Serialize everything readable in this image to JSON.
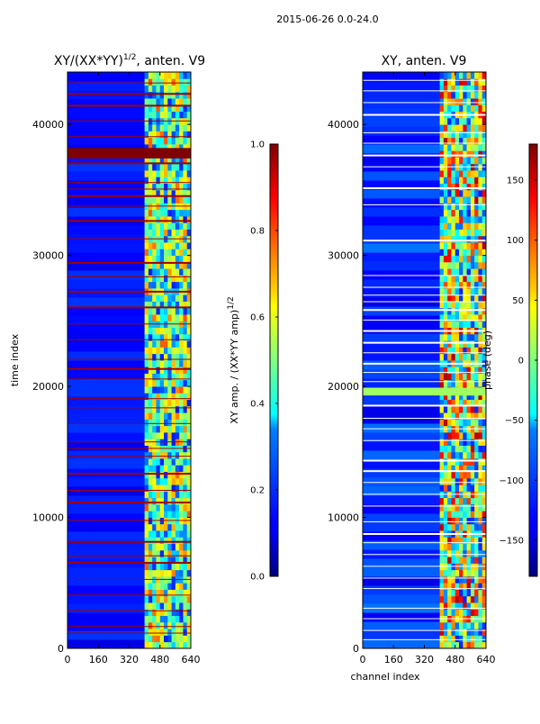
{
  "chart_data": [
    {
      "type": "heatmap",
      "title": "XY/(XX*YY)",
      "title_exponent": "1/2",
      "title_suffix": ", anten. V9",
      "xlabel": "",
      "ylabel": "time index",
      "xlim": [
        0,
        640
      ],
      "ylim": [
        0,
        44000
      ],
      "xticks": [
        0,
        160,
        320,
        480,
        640
      ],
      "yticks": [
        0,
        10000,
        20000,
        30000,
        40000
      ],
      "colormap": "jet",
      "color_range": [
        0.0,
        1.0
      ],
      "active_channel_range": [
        400,
        640
      ],
      "saturated_rows": [
        1200,
        1700,
        2900,
        4100,
        5300,
        6600,
        7100,
        8200,
        9800,
        11200,
        12100,
        13400,
        14700,
        15300,
        15800,
        17200,
        18400,
        19100,
        20600,
        21400,
        22100,
        23600,
        24800,
        26100,
        27300,
        28400,
        29500,
        31300,
        32700,
        33800,
        34600,
        35100,
        35600,
        37100,
        37600,
        38000,
        39100,
        40300,
        41500,
        42400,
        43200
      ]
    },
    {
      "type": "heatmap",
      "title": "XY, anten. V9",
      "xlabel": "channel index",
      "ylabel": "",
      "xlim": [
        0,
        640
      ],
      "ylim": [
        0,
        44000
      ],
      "xticks": [
        0,
        160,
        320,
        480,
        640
      ],
      "yticks": [
        0,
        10000,
        20000,
        30000,
        40000
      ],
      "colormap": "jet",
      "color_range": [
        -180,
        180
      ],
      "active_channel_range": [
        400,
        640
      ],
      "white_rows": [
        700,
        1400,
        2300,
        3100,
        4600,
        5400,
        6300,
        7200,
        8100,
        8800,
        9700,
        10900,
        11800,
        12700,
        13600,
        14400,
        15900,
        16800,
        17600,
        18600,
        19800,
        20400,
        21100,
        21800,
        22600,
        23400,
        24300,
        25100,
        25900,
        26500,
        27000,
        27600,
        28500,
        31200,
        33900,
        35200,
        36800,
        37700,
        38600,
        39400,
        40800,
        41700,
        42600,
        43400
      ]
    }
  ],
  "figure": {
    "suptitle": "2015-06-26 0.0-24.0"
  },
  "colorbars": [
    {
      "label": "XY amp. / (XX*YY amp)",
      "label_exponent": "1/2",
      "min": 0.0,
      "max": 1.0,
      "ticks": [
        0.0,
        0.2,
        0.4,
        0.6,
        0.8,
        1.0
      ],
      "tick_labels": [
        "0.0",
        "0.2",
        "0.4",
        "0.6",
        "0.8",
        "1.0"
      ]
    },
    {
      "label": "phase (deg)",
      "min": -180,
      "max": 180,
      "ticks": [
        -150,
        -100,
        -50,
        0,
        50,
        100,
        150
      ],
      "tick_labels": [
        "−150",
        "−100",
        "−50",
        "0",
        "50",
        "100",
        "150"
      ]
    }
  ],
  "colors": {
    "jet_low": "#00007f",
    "jet_high": "#7f0000",
    "frame": "#000000",
    "background": "#ffffff"
  }
}
